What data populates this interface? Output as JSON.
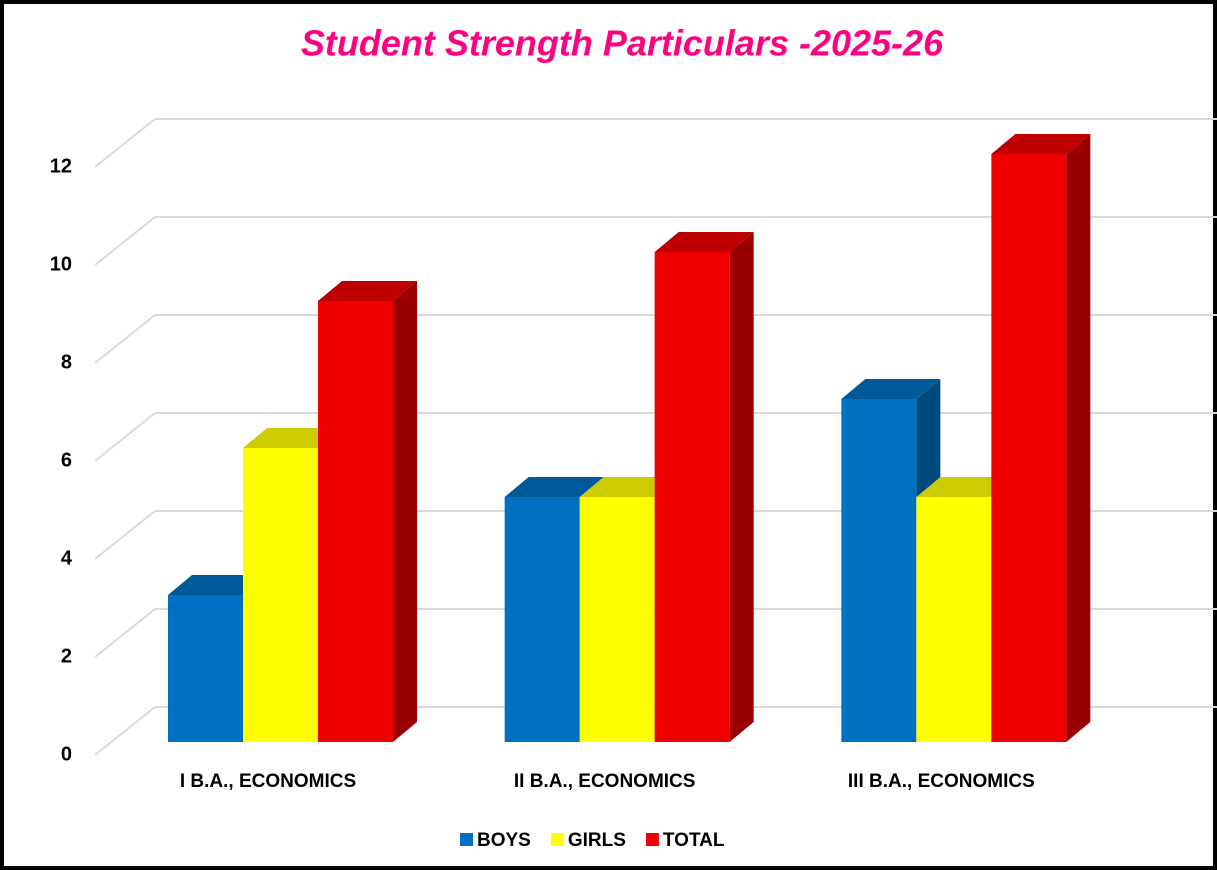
{
  "chart_data": {
    "type": "bar3d",
    "title": "Student Strength Particulars -2025-26",
    "categories": [
      "I B.A., ECONOMICS",
      "II B.A., ECONOMICS",
      "III B.A., ECONOMICS"
    ],
    "series": [
      {
        "name": "BOYS",
        "color": "#0070c0",
        "values": [
          3,
          5,
          7
        ]
      },
      {
        "name": "GIRLS",
        "color": "#ffff00",
        "values": [
          6,
          5,
          5
        ]
      },
      {
        "name": "TOTAL",
        "color": "#ee0000",
        "values": [
          9,
          10,
          12
        ]
      }
    ],
    "ylim": [
      0,
      12
    ],
    "yticks": [
      0,
      2,
      4,
      6,
      8,
      10,
      12
    ],
    "grid": true,
    "legend": "bottom"
  }
}
